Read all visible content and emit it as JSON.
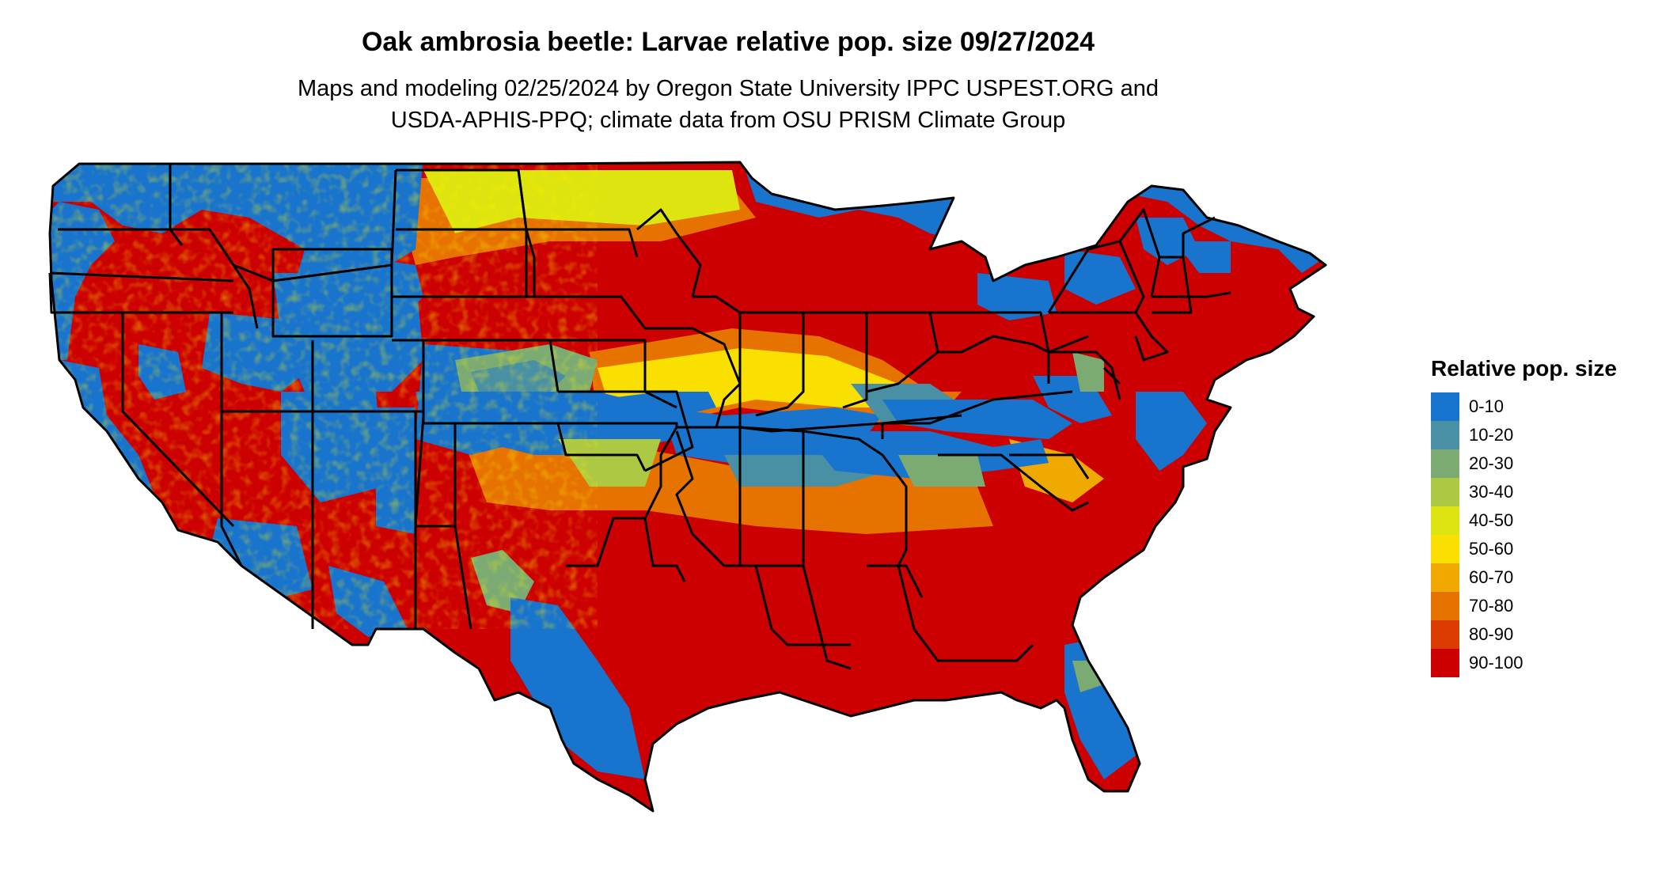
{
  "title": "Oak ambrosia beetle: Larvae relative pop. size 09/27/2024",
  "subtitle_lines": [
    "Maps and modeling 02/25/2024 by Oregon State University IPPC USPEST.ORG and",
    "USDA-APHIS-PPQ; climate data from OSU PRISM Climate Group"
  ],
  "legend": {
    "title": "Relative pop. size",
    "items": [
      {
        "label": "0-10",
        "color": "#1874CD"
      },
      {
        "label": "10-20",
        "color": "#4A90A4"
      },
      {
        "label": "20-30",
        "color": "#7BAB73"
      },
      {
        "label": "30-40",
        "color": "#ADC843"
      },
      {
        "label": "40-50",
        "color": "#DEE40F"
      },
      {
        "label": "50-60",
        "color": "#FAE000"
      },
      {
        "label": "60-70",
        "color": "#F0A900"
      },
      {
        "label": "70-80",
        "color": "#E67200"
      },
      {
        "label": "80-90",
        "color": "#DB3B00"
      },
      {
        "label": "90-100",
        "color": "#CC0000"
      }
    ]
  }
}
